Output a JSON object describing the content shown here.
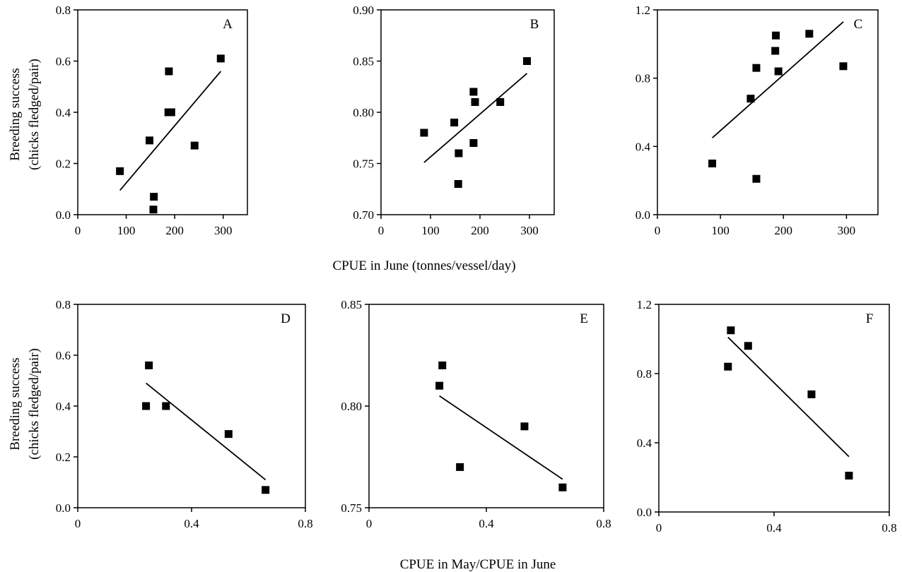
{
  "x_axis_title_top": "CPUE in June (tonnes/vessel/day)",
  "x_axis_title_bottom": "CPUE in May/CPUE in June",
  "y_axis_title_line1": "Breeding success",
  "y_axis_title_line2": "(chicks fledged/pair)",
  "chart_data": [
    {
      "type": "scatter",
      "panel": "A",
      "xlim": [
        0,
        350
      ],
      "ylim": [
        0.0,
        0.8
      ],
      "xticks": [
        0,
        100,
        200,
        300
      ],
      "yticks": [
        0.0,
        0.2,
        0.4,
        0.6,
        0.8
      ],
      "xtick_labels": [
        "0",
        "100",
        "200",
        "300"
      ],
      "ytick_labels": [
        "0.0",
        "0.2",
        "0.4",
        "0.6",
        "0.8"
      ],
      "x": [
        87,
        148,
        157,
        156,
        187,
        193,
        241,
        295
      ],
      "y": [
        0.17,
        0.29,
        0.07,
        0.02,
        0.4,
        0.4,
        0.27,
        0.61
      ],
      "extra_points": [
        [
          188,
          0.56
        ]
      ],
      "trendline": [
        [
          87,
          0.095
        ],
        [
          295,
          0.56
        ]
      ]
    },
    {
      "type": "scatter",
      "panel": "B",
      "xlim": [
        0,
        350
      ],
      "ylim": [
        0.7,
        0.9
      ],
      "xticks": [
        0,
        100,
        200,
        300
      ],
      "yticks": [
        0.7,
        0.75,
        0.8,
        0.85,
        0.9
      ],
      "xtick_labels": [
        "0",
        "100",
        "200",
        "300"
      ],
      "ytick_labels": [
        "0.70",
        "0.75",
        "0.80",
        "0.85",
        "0.90"
      ],
      "x": [
        87,
        148,
        157,
        156,
        187,
        187,
        190,
        241,
        295
      ],
      "y": [
        0.78,
        0.79,
        0.76,
        0.73,
        0.82,
        0.77,
        0.81,
        0.81,
        0.85
      ],
      "trendline": [
        [
          87,
          0.751
        ],
        [
          295,
          0.838
        ]
      ]
    },
    {
      "type": "scatter",
      "panel": "C",
      "xlim": [
        0,
        350
      ],
      "ylim": [
        0.0,
        1.2
      ],
      "xticks": [
        0,
        100,
        200,
        300
      ],
      "yticks": [
        0.0,
        0.4,
        0.8,
        1.2
      ],
      "xtick_labels": [
        "0",
        "100",
        "200",
        "300"
      ],
      "ytick_labels": [
        "0.0",
        "0.4",
        "0.8",
        "1.2"
      ],
      "x": [
        87,
        148,
        157,
        157,
        187,
        188,
        192,
        241,
        295
      ],
      "y": [
        0.3,
        0.68,
        0.86,
        0.21,
        0.96,
        1.05,
        0.84,
        1.06,
        0.87
      ],
      "trendline": [
        [
          87,
          0.45
        ],
        [
          295,
          1.13
        ]
      ]
    },
    {
      "type": "scatter",
      "panel": "D",
      "xlim": [
        0,
        0.8
      ],
      "ylim": [
        0.0,
        0.8
      ],
      "xticks": [
        0,
        0.4,
        0.8
      ],
      "yticks": [
        0.0,
        0.2,
        0.4,
        0.6,
        0.8
      ],
      "xtick_labels": [
        "0",
        "0.4",
        "0.8"
      ],
      "ytick_labels": [
        "0.0",
        "0.2",
        "0.4",
        "0.6",
        "0.8"
      ],
      "x": [
        0.24,
        0.25,
        0.31,
        0.53,
        0.66
      ],
      "y": [
        0.4,
        0.56,
        0.4,
        0.29,
        0.07
      ],
      "trendline": [
        [
          0.24,
          0.49
        ],
        [
          0.66,
          0.11
        ]
      ]
    },
    {
      "type": "scatter",
      "panel": "E",
      "xlim": [
        0,
        0.8
      ],
      "ylim": [
        0.75,
        0.85
      ],
      "xticks": [
        0,
        0.4,
        0.8
      ],
      "yticks": [
        0.75,
        0.8,
        0.85
      ],
      "xtick_labels": [
        "0",
        "0.4",
        "0.8"
      ],
      "ytick_labels": [
        "0.75",
        "0.80",
        "0.85"
      ],
      "x": [
        0.24,
        0.25,
        0.31,
        0.53,
        0.66
      ],
      "y": [
        0.81,
        0.82,
        0.77,
        0.79,
        0.76
      ],
      "trendline": [
        [
          0.24,
          0.805
        ],
        [
          0.66,
          0.764
        ]
      ]
    },
    {
      "type": "scatter",
      "panel": "F",
      "xlim": [
        0,
        0.8
      ],
      "ylim": [
        0.0,
        1.2
      ],
      "xticks": [
        0,
        0.4,
        0.8
      ],
      "yticks": [
        0.0,
        0.4,
        0.8,
        1.2
      ],
      "xtick_labels": [
        "0",
        "0.4",
        "0.8"
      ],
      "ytick_labels": [
        "0.0",
        "0.4",
        "0.8",
        "1.2"
      ],
      "x": [
        0.24,
        0.25,
        0.31,
        0.53,
        0.66
      ],
      "y": [
        0.84,
        1.05,
        0.96,
        0.68,
        0.21
      ],
      "trendline": [
        [
          0.24,
          1.01
        ],
        [
          0.66,
          0.32
        ]
      ]
    }
  ]
}
